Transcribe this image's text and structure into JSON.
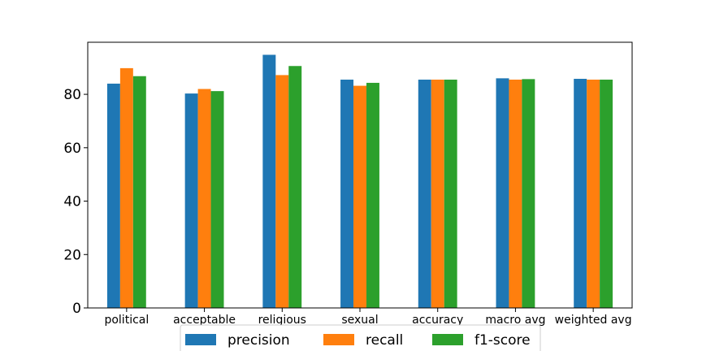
{
  "chart_data": {
    "type": "bar",
    "title": "",
    "xlabel": "",
    "ylabel": "",
    "categories": [
      "political",
      "acceptable",
      "religious",
      "sexual",
      "accuracy",
      "macro avg",
      "weighted avg"
    ],
    "series": [
      {
        "name": "precision",
        "color": "#1f77b4",
        "values": [
          84.0,
          80.3,
          94.8,
          85.5,
          85.5,
          86.0,
          85.8
        ]
      },
      {
        "name": "recall",
        "color": "#ff7f0e",
        "values": [
          89.8,
          82.0,
          87.2,
          83.2,
          85.5,
          85.5,
          85.5
        ]
      },
      {
        "name": "f1-score",
        "color": "#2ca02c",
        "values": [
          86.8,
          81.2,
          90.6,
          84.3,
          85.5,
          85.7,
          85.5
        ]
      }
    ],
    "ylim": [
      0,
      99.5
    ],
    "yticks": [
      0,
      20,
      40,
      60,
      80
    ],
    "grid": false,
    "legend": "bottom-center"
  }
}
